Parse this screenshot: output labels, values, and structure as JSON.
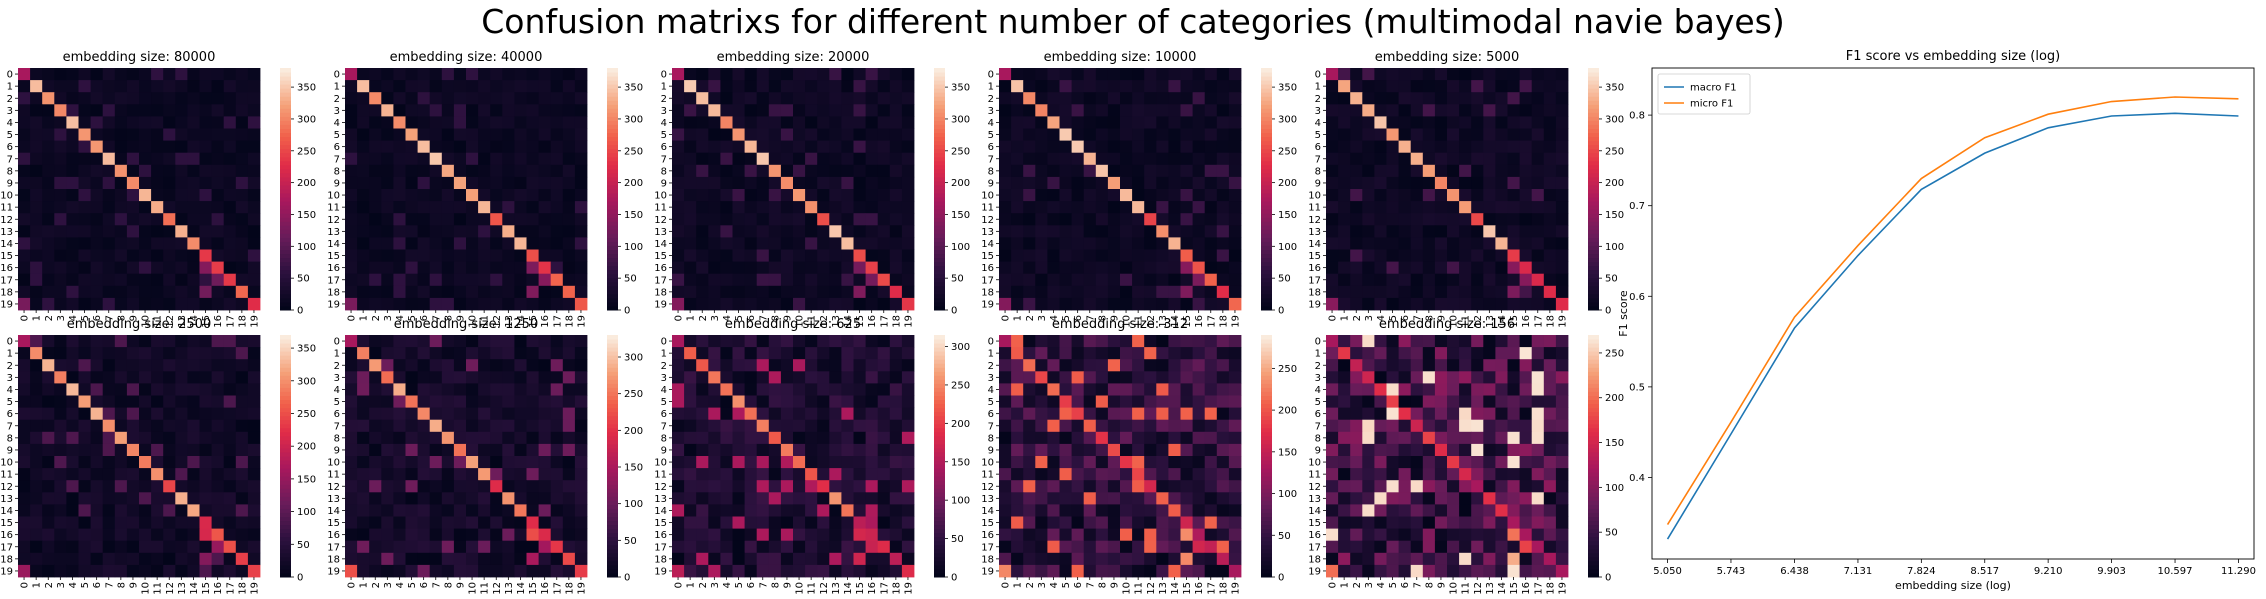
{
  "title": "Confusion matrixs for different number of categories (multimodal navie bayes)",
  "heatmap_class_labels": [
    "0",
    "1",
    "2",
    "3",
    "4",
    "5",
    "6",
    "7",
    "8",
    "9",
    "10",
    "11",
    "12",
    "13",
    "14",
    "15",
    "16",
    "17",
    "18",
    "19"
  ],
  "chart_data": [
    {
      "type": "heatmap",
      "title": "embedding size: 80000",
      "vmax": 380,
      "colorbar_ticks": [
        0,
        50,
        100,
        150,
        200,
        250,
        300,
        350
      ],
      "colormap": "rocket",
      "noise": 0.03
    },
    {
      "type": "heatmap",
      "title": "embedding size: 40000",
      "vmax": 380,
      "colorbar_ticks": [
        0,
        50,
        100,
        150,
        200,
        250,
        300,
        350
      ],
      "colormap": "rocket",
      "noise": 0.03
    },
    {
      "type": "heatmap",
      "title": "embedding size: 20000",
      "vmax": 380,
      "colorbar_ticks": [
        0,
        50,
        100,
        150,
        200,
        250,
        300,
        350
      ],
      "colormap": "rocket",
      "noise": 0.035
    },
    {
      "type": "heatmap",
      "title": "embedding size: 10000",
      "vmax": 380,
      "colorbar_ticks": [
        0,
        50,
        100,
        150,
        200,
        250,
        300,
        350
      ],
      "colormap": "rocket",
      "noise": 0.035
    },
    {
      "type": "heatmap",
      "title": "embedding size: 5000",
      "vmax": 380,
      "colorbar_ticks": [
        0,
        50,
        100,
        150,
        200,
        250,
        300,
        350
      ],
      "colormap": "rocket",
      "noise": 0.04
    },
    {
      "type": "heatmap",
      "title": "embedding size: 2500",
      "vmax": 370,
      "colorbar_ticks": [
        0,
        50,
        100,
        150,
        200,
        250,
        300,
        350
      ],
      "colormap": "rocket",
      "noise": 0.045
    },
    {
      "type": "heatmap",
      "title": "embedding size: 1250",
      "vmax": 330,
      "colorbar_ticks": [
        0,
        50,
        100,
        150,
        200,
        250,
        300
      ],
      "colormap": "rocket",
      "noise": 0.06
    },
    {
      "type": "heatmap",
      "title": "embedding size: 625",
      "vmax": 315,
      "colorbar_ticks": [
        0,
        50,
        100,
        150,
        200,
        250,
        300
      ],
      "colormap": "rocket",
      "noise": 0.09
    },
    {
      "type": "heatmap",
      "title": "embedding size: 312",
      "vmax": 290,
      "colorbar_ticks": [
        0,
        50,
        100,
        150,
        200,
        250
      ],
      "colormap": "rocket",
      "noise": 0.14
    },
    {
      "type": "heatmap",
      "title": "embedding size: 156",
      "vmax": 270,
      "colorbar_ticks": [
        0,
        50,
        100,
        150,
        200,
        250
      ],
      "colormap": "rocket",
      "noise": 0.19
    },
    {
      "type": "line",
      "title": "F1 score vs embedding size (log)",
      "xlabel": "embedding size (log)",
      "ylabel": "F1 score",
      "x": [
        5.05,
        5.743,
        6.438,
        7.131,
        7.824,
        8.517,
        9.21,
        9.903,
        10.597,
        11.29
      ],
      "x_tick_labels": [
        "5.050",
        "5.743",
        "6.438",
        "7.131",
        "7.824",
        "8.517",
        "9.210",
        "9.903",
        "10.597",
        "11.290"
      ],
      "y_ticks": [
        0.4,
        0.5,
        0.6,
        0.7,
        0.8
      ],
      "xlim": [
        4.88,
        11.46
      ],
      "ylim": [
        0.31,
        0.852
      ],
      "legend_position": "top-left",
      "grid": false,
      "series": [
        {
          "name": "macro F1",
          "color": "#1f77b4",
          "values": [
            0.332,
            0.448,
            0.565,
            0.645,
            0.718,
            0.758,
            0.786,
            0.799,
            0.802,
            0.799
          ]
        },
        {
          "name": "micro F1",
          "color": "#ff7f0e",
          "values": [
            0.348,
            0.461,
            0.577,
            0.656,
            0.73,
            0.775,
            0.801,
            0.815,
            0.82,
            0.818
          ]
        }
      ]
    }
  ]
}
